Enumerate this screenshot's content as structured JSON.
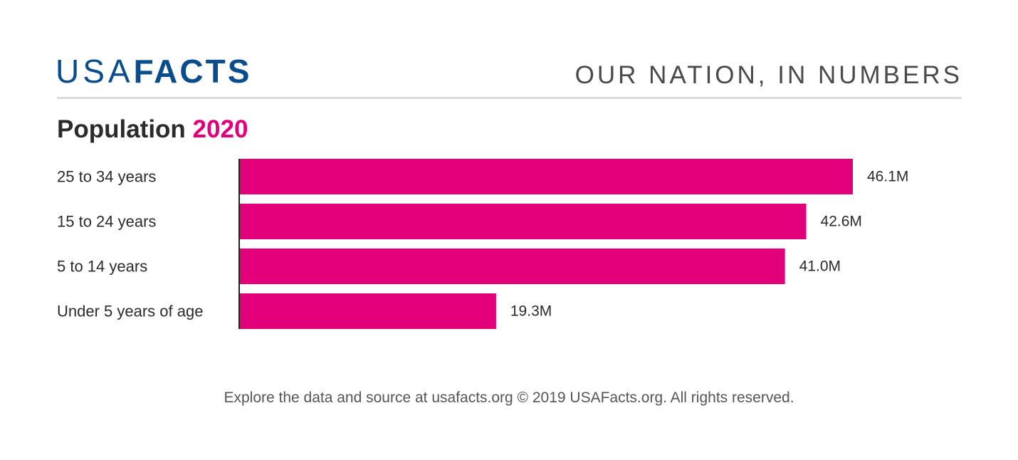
{
  "header": {
    "logo_usa": "USA",
    "logo_facts": "FACTS",
    "tagline": "OUR NATION, IN NUMBERS"
  },
  "title": {
    "main": "Population",
    "year": "2020"
  },
  "colors": {
    "bar": "#e2007a",
    "brand": "#0a4d8c",
    "axis": "#222222",
    "text": "#2b2b2b"
  },
  "chart_data": {
    "type": "bar",
    "orientation": "horizontal",
    "title": "Population 2020",
    "categories": [
      "25 to 34 years",
      "15 to 24 years",
      "5 to 14 years",
      "Under 5 years of age"
    ],
    "values": [
      46.1,
      42.6,
      41.0,
      19.3
    ],
    "value_labels": [
      "46.1M",
      "42.6M",
      "41.0M",
      "19.3M"
    ],
    "unit": "M",
    "xlim": [
      0,
      46.1
    ],
    "grid": false
  },
  "footer": {
    "text": "Explore the data and source at usafacts.org © 2019 USAFacts.org. All rights reserved."
  }
}
